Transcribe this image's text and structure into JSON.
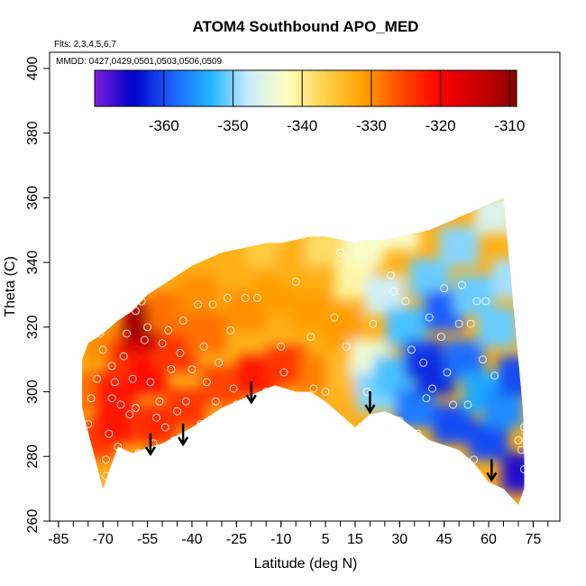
{
  "chart_data": {
    "type": "heatmap",
    "title": "ATOM4 Southbound APO_MED",
    "notes": {
      "flights": "Flts: 2,3,4,5,6,7",
      "dates": "MMDD: 0427,0429,0501,0503,0506,0509"
    },
    "xlabel": "Latitude (deg N)",
    "ylabel": "Theta (C)",
    "xlim": [
      -88,
      84
    ],
    "ylim": [
      260,
      405
    ],
    "x_ticks": [
      -85,
      -70,
      -55,
      -40,
      -25,
      -10,
      5,
      15,
      30,
      45,
      60,
      75
    ],
    "y_ticks": [
      260,
      280,
      300,
      320,
      340,
      360,
      380,
      400
    ],
    "colorbar": {
      "range": [
        -370,
        -309
      ],
      "ticks": [
        -360,
        -350,
        -340,
        -330,
        -320,
        -310
      ],
      "colors": [
        "#7b1fe0",
        "#0000c8",
        "#1e5fff",
        "#1fb4ff",
        "#c8ecff",
        "#ffffc0",
        "#ffd24a",
        "#ffa000",
        "#ff4a00",
        "#ff0000",
        "#c80000",
        "#8c0000"
      ]
    },
    "field_boundary": {
      "lat": [
        -76,
        -74,
        -70,
        -65,
        -60,
        -57,
        -50,
        -40,
        -35,
        -30,
        -25,
        -20,
        -15,
        -12,
        -5,
        0,
        5,
        10,
        15,
        20,
        25,
        30,
        40,
        50,
        55,
        60,
        65,
        70,
        72,
        72,
        68,
        65,
        60,
        50,
        40,
        30,
        25,
        20,
        15,
        10,
        5,
        0,
        -5,
        -10,
        -15,
        -20,
        -25,
        -30,
        -35,
        -40,
        -45,
        -50,
        -55,
        -60,
        -65,
        -70,
        -75,
        -77,
        -77
      ],
      "theta": [
        291,
        284,
        270,
        283,
        281,
        282,
        284,
        289,
        292,
        295,
        297,
        299,
        301,
        302,
        300,
        300,
        297,
        293,
        289,
        293,
        294,
        292,
        285,
        282,
        278,
        272,
        270,
        265,
        270,
        290,
        330,
        360,
        358,
        354,
        350,
        348,
        347,
        347,
        346,
        347,
        348,
        348,
        347,
        346,
        346,
        345,
        344,
        343,
        341,
        339,
        336,
        333,
        330,
        325,
        322,
        318,
        315,
        310,
        295
      ]
    },
    "field_samples": [
      {
        "lat": -75,
        "theta": 300,
        "value": -328
      },
      {
        "lat": -72,
        "theta": 285,
        "value": -325
      },
      {
        "lat": -70,
        "theta": 315,
        "value": -330
      },
      {
        "lat": -66,
        "theta": 300,
        "value": -322
      },
      {
        "lat": -66,
        "theta": 290,
        "value": -322
      },
      {
        "lat": -62,
        "theta": 310,
        "value": -324
      },
      {
        "lat": -58,
        "theta": 318,
        "value": -316
      },
      {
        "lat": -56,
        "theta": 322,
        "value": -311
      },
      {
        "lat": -55,
        "theta": 305,
        "value": -321
      },
      {
        "lat": -52,
        "theta": 290,
        "value": -323
      },
      {
        "lat": -48,
        "theta": 325,
        "value": -328
      },
      {
        "lat": -45,
        "theta": 312,
        "value": -324
      },
      {
        "lat": -42,
        "theta": 295,
        "value": -324
      },
      {
        "lat": -38,
        "theta": 330,
        "value": -330
      },
      {
        "lat": -35,
        "theta": 318,
        "value": -328
      },
      {
        "lat": -30,
        "theta": 302,
        "value": -325
      },
      {
        "lat": -25,
        "theta": 340,
        "value": -333
      },
      {
        "lat": -22,
        "theta": 325,
        "value": -330
      },
      {
        "lat": -18,
        "theta": 305,
        "value": -322
      },
      {
        "lat": -15,
        "theta": 345,
        "value": -336
      },
      {
        "lat": -12,
        "theta": 330,
        "value": -331
      },
      {
        "lat": -8,
        "theta": 308,
        "value": -324
      },
      {
        "lat": -5,
        "theta": 340,
        "value": -333
      },
      {
        "lat": 0,
        "theta": 325,
        "value": -331
      },
      {
        "lat": 3,
        "theta": 305,
        "value": -329
      },
      {
        "lat": 5,
        "theta": 345,
        "value": -338
      },
      {
        "lat": 10,
        "theta": 320,
        "value": -331
      },
      {
        "lat": 12,
        "theta": 305,
        "value": -334
      },
      {
        "lat": 15,
        "theta": 335,
        "value": -341
      },
      {
        "lat": 18,
        "theta": 345,
        "value": -343
      },
      {
        "lat": 20,
        "theta": 310,
        "value": -344
      },
      {
        "lat": 22,
        "theta": 300,
        "value": -350
      },
      {
        "lat": 25,
        "theta": 330,
        "value": -347
      },
      {
        "lat": 28,
        "theta": 305,
        "value": -352
      },
      {
        "lat": 30,
        "theta": 350,
        "value": -343
      },
      {
        "lat": 32,
        "theta": 320,
        "value": -352
      },
      {
        "lat": 35,
        "theta": 295,
        "value": -357
      },
      {
        "lat": 38,
        "theta": 310,
        "value": -361
      },
      {
        "lat": 40,
        "theta": 335,
        "value": -351
      },
      {
        "lat": 42,
        "theta": 305,
        "value": -362
      },
      {
        "lat": 45,
        "theta": 325,
        "value": -359
      },
      {
        "lat": 48,
        "theta": 290,
        "value": -360
      },
      {
        "lat": 50,
        "theta": 345,
        "value": -350
      },
      {
        "lat": 52,
        "theta": 310,
        "value": -358
      },
      {
        "lat": 55,
        "theta": 330,
        "value": -351
      },
      {
        "lat": 58,
        "theta": 300,
        "value": -354
      },
      {
        "lat": 60,
        "theta": 285,
        "value": -360
      },
      {
        "lat": 62,
        "theta": 355,
        "value": -346
      },
      {
        "lat": 63,
        "theta": 320,
        "value": -351
      },
      {
        "lat": 65,
        "theta": 295,
        "value": -356
      },
      {
        "lat": 68,
        "theta": 335,
        "value": -349
      },
      {
        "lat": 70,
        "theta": 305,
        "value": -360
      },
      {
        "lat": 71,
        "theta": 275,
        "value": -366
      }
    ],
    "observations": [
      {
        "lat": -80,
        "theta": 290
      },
      {
        "lat": -77,
        "theta": 283
      },
      {
        "lat": -75,
        "theta": 290
      },
      {
        "lat": -74,
        "theta": 298
      },
      {
        "lat": -72,
        "theta": 304
      },
      {
        "lat": -71,
        "theta": 318
      },
      {
        "lat": -70,
        "theta": 313
      },
      {
        "lat": -69,
        "theta": 279
      },
      {
        "lat": -69,
        "theta": 274
      },
      {
        "lat": -68,
        "theta": 287
      },
      {
        "lat": -67,
        "theta": 308
      },
      {
        "lat": -67,
        "theta": 298
      },
      {
        "lat": -66,
        "theta": 327
      },
      {
        "lat": -66,
        "theta": 303
      },
      {
        "lat": -65,
        "theta": 283
      },
      {
        "lat": -64,
        "theta": 296
      },
      {
        "lat": -63,
        "theta": 311
      },
      {
        "lat": -62,
        "theta": 318
      },
      {
        "lat": -61,
        "theta": 293
      },
      {
        "lat": -60,
        "theta": 304
      },
      {
        "lat": -59,
        "theta": 295
      },
      {
        "lat": -59,
        "theta": 325
      },
      {
        "lat": -58,
        "theta": 281
      },
      {
        "lat": -57,
        "theta": 328
      },
      {
        "lat": -56,
        "theta": 316
      },
      {
        "lat": -55,
        "theta": 320
      },
      {
        "lat": -54,
        "theta": 303
      },
      {
        "lat": -53,
        "theta": 284
      },
      {
        "lat": -52,
        "theta": 292
      },
      {
        "lat": -51,
        "theta": 297
      },
      {
        "lat": -50,
        "theta": 315
      },
      {
        "lat": -49,
        "theta": 289
      },
      {
        "lat": -48,
        "theta": 319
      },
      {
        "lat": -47,
        "theta": 307
      },
      {
        "lat": -46,
        "theta": 285
      },
      {
        "lat": -45,
        "theta": 294
      },
      {
        "lat": -44,
        "theta": 312
      },
      {
        "lat": -43,
        "theta": 322
      },
      {
        "lat": -42,
        "theta": 297
      },
      {
        "lat": -41,
        "theta": 287
      },
      {
        "lat": -40,
        "theta": 307
      },
      {
        "lat": -38,
        "theta": 327
      },
      {
        "lat": -37,
        "theta": 290
      },
      {
        "lat": -36,
        "theta": 314
      },
      {
        "lat": -35,
        "theta": 303
      },
      {
        "lat": -33,
        "theta": 327
      },
      {
        "lat": -32,
        "theta": 297
      },
      {
        "lat": -31,
        "theta": 309
      },
      {
        "lat": -28,
        "theta": 329
      },
      {
        "lat": -27,
        "theta": 319
      },
      {
        "lat": -26,
        "theta": 301
      },
      {
        "lat": -25,
        "theta": 296
      },
      {
        "lat": -22,
        "theta": 329
      },
      {
        "lat": -18,
        "theta": 329
      },
      {
        "lat": -15,
        "theta": 300
      },
      {
        "lat": -10,
        "theta": 314
      },
      {
        "lat": -9,
        "theta": 306
      },
      {
        "lat": -5,
        "theta": 334
      },
      {
        "lat": 0,
        "theta": 317
      },
      {
        "lat": 1,
        "theta": 301
      },
      {
        "lat": 5,
        "theta": 300
      },
      {
        "lat": 8,
        "theta": 323
      },
      {
        "lat": 10,
        "theta": 343
      },
      {
        "lat": 12,
        "theta": 314
      },
      {
        "lat": 19,
        "theta": 300
      },
      {
        "lat": 21,
        "theta": 321
      },
      {
        "lat": 27,
        "theta": 336
      },
      {
        "lat": 28,
        "theta": 331
      },
      {
        "lat": 30,
        "theta": 291
      },
      {
        "lat": 32,
        "theta": 328
      },
      {
        "lat": 34,
        "theta": 313
      },
      {
        "lat": 36,
        "theta": 287
      },
      {
        "lat": 38,
        "theta": 309
      },
      {
        "lat": 39,
        "theta": 298
      },
      {
        "lat": 40,
        "theta": 323
      },
      {
        "lat": 41,
        "theta": 301
      },
      {
        "lat": 43,
        "theta": 279
      },
      {
        "lat": 44,
        "theta": 317
      },
      {
        "lat": 45,
        "theta": 332
      },
      {
        "lat": 46,
        "theta": 306
      },
      {
        "lat": 48,
        "theta": 296
      },
      {
        "lat": 49,
        "theta": 280
      },
      {
        "lat": 50,
        "theta": 321
      },
      {
        "lat": 51,
        "theta": 333
      },
      {
        "lat": 53,
        "theta": 296
      },
      {
        "lat": 54,
        "theta": 321
      },
      {
        "lat": 55,
        "theta": 279
      },
      {
        "lat": 56,
        "theta": 328
      },
      {
        "lat": 58,
        "theta": 310
      },
      {
        "lat": 59,
        "theta": 328
      },
      {
        "lat": 62,
        "theta": 305
      },
      {
        "lat": 66,
        "theta": 358
      },
      {
        "lat": 70,
        "theta": 285
      },
      {
        "lat": 71,
        "theta": 282
      },
      {
        "lat": 72,
        "theta": 276
      },
      {
        "lat": 72,
        "theta": 289
      }
    ],
    "arrows": [
      {
        "lat": -54,
        "theta": 281
      },
      {
        "lat": -43,
        "theta": 284
      },
      {
        "lat": -20,
        "theta": 297
      },
      {
        "lat": 20,
        "theta": 294
      },
      {
        "lat": 61,
        "theta": 273
      }
    ],
    "grid": false,
    "legend": "colorbar-top"
  }
}
